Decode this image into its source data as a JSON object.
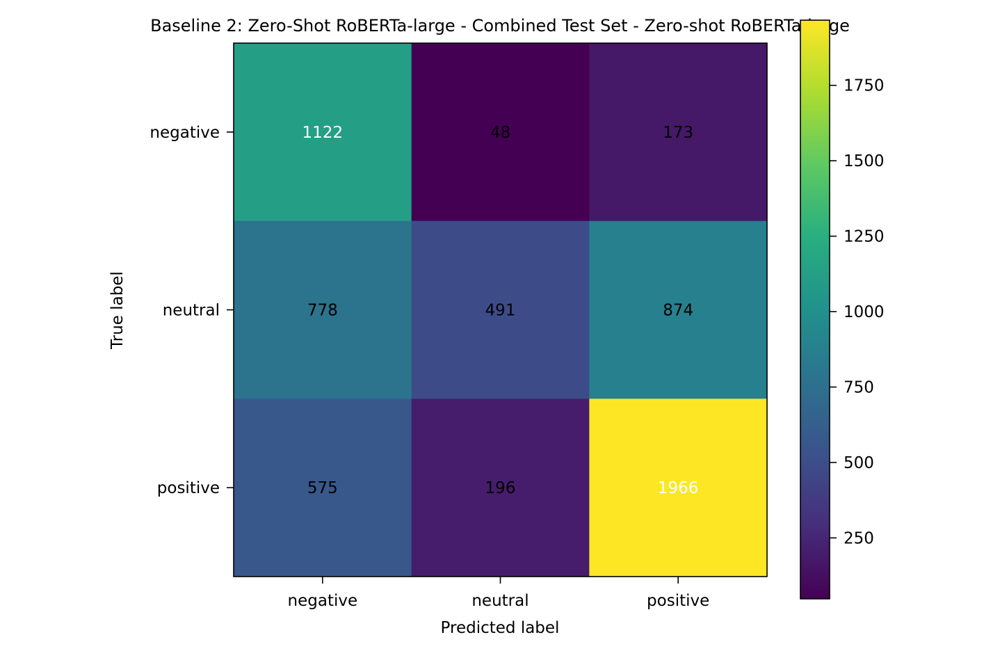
{
  "chart_data": {
    "type": "heatmap",
    "title": "Baseline 2: Zero-Shot RoBERTa-large - Combined Test Set - Zero-shot RoBERTa-large",
    "xlabel": "Predicted label",
    "ylabel": "True label",
    "x_categories": [
      "negative",
      "neutral",
      "positive"
    ],
    "y_categories": [
      "negative",
      "neutral",
      "positive"
    ],
    "values": [
      [
        1122,
        48,
        173
      ],
      [
        778,
        491,
        874
      ],
      [
        575,
        196,
        1966
      ]
    ],
    "colormap": "viridis",
    "colorbar": {
      "range": [
        48,
        1966
      ],
      "ticks": [
        250,
        500,
        750,
        1000,
        1250,
        1500,
        1750
      ],
      "tick_labels": [
        "250",
        "500",
        "750",
        "1000",
        "1250",
        "1500",
        "1750"
      ]
    },
    "light_text_color": "#ffffff",
    "dark_text_color": "#000000"
  }
}
